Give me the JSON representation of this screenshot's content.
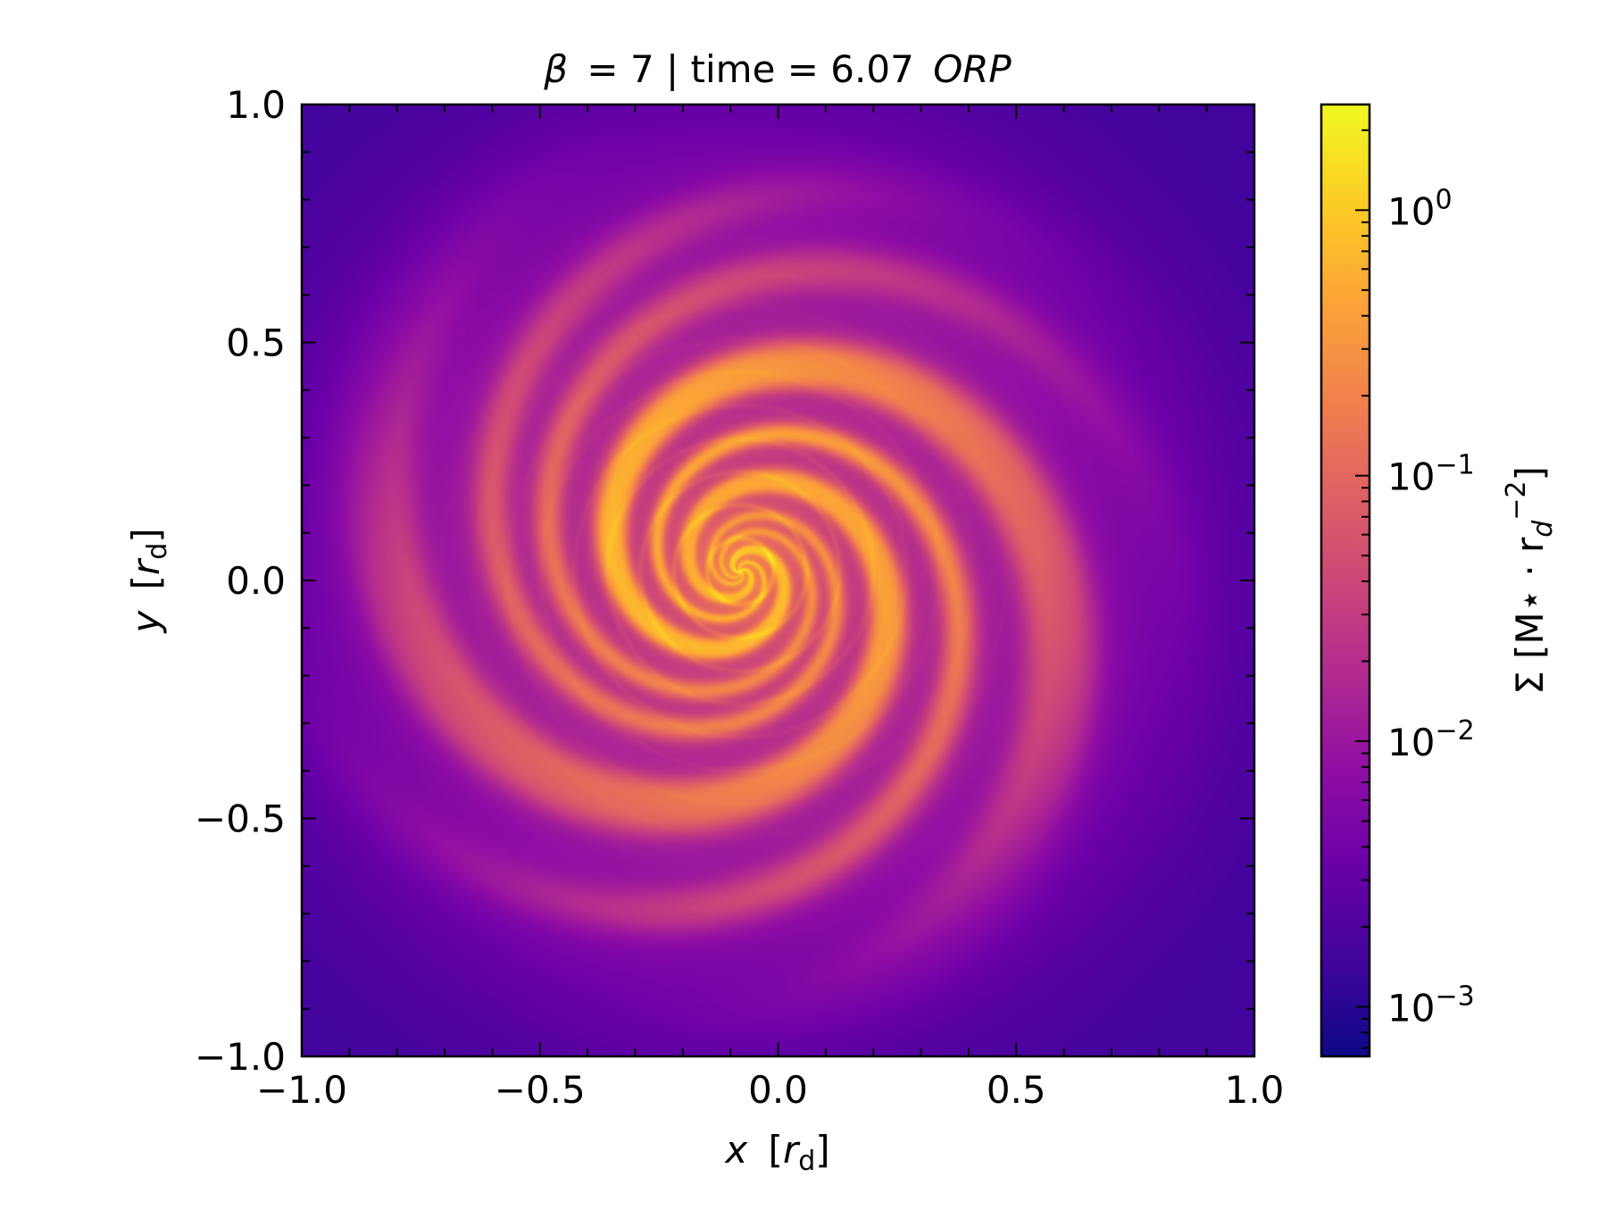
{
  "chart_data": {
    "type": "heatmap",
    "title": {
      "beta_symbol": "β",
      "beta_value": "= 7 | time = 6.07",
      "unit": "ORP"
    },
    "x_axis": {
      "label_var": "x",
      "label_unit_open": "[",
      "label_unit_base": "r",
      "label_unit_sub": "d",
      "label_unit_close": "]",
      "range": [
        -1.0,
        1.0
      ],
      "ticks": [
        -1.0,
        -0.5,
        0.0,
        0.5,
        1.0
      ],
      "tick_labels": [
        "−1.0",
        "−0.5",
        "0.0",
        "0.5",
        "1.0"
      ]
    },
    "y_axis": {
      "label_var": "y",
      "label_unit_open": "[",
      "label_unit_base": "r",
      "label_unit_sub": "d",
      "label_unit_close": "]",
      "range": [
        -1.0,
        1.0
      ],
      "ticks": [
        -1.0,
        -0.5,
        0.0,
        0.5,
        1.0
      ],
      "tick_labels": [
        "−1.0",
        "−0.5",
        "0.0",
        "0.5",
        "1.0"
      ]
    },
    "colorbar": {
      "label": "Σ [M⋆ · r",
      "label_sub": "d",
      "label_sup": "−2",
      "label_close": "]",
      "scale": "log",
      "range": [
        0.00065,
        2.5
      ],
      "colormap": "plasma",
      "major_ticks": [
        0.001,
        0.01,
        0.1,
        1
      ],
      "tick_base": "10",
      "tick_exponents": [
        "−3",
        "−2",
        "−1",
        "0"
      ]
    },
    "field_description": {
      "center": [
        -0.08,
        0.02
      ],
      "peak_value": 1.0,
      "spiral_arms": 7
    }
  }
}
